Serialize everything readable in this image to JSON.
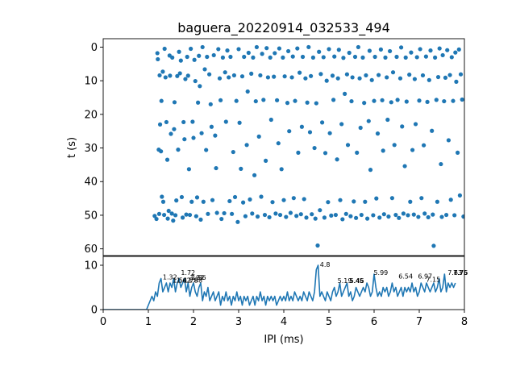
{
  "chart_data": [
    {
      "type": "scatter",
      "title": "baguera_20220914_032533_494",
      "ylabel": "t (s)",
      "xlim": [
        0,
        8
      ],
      "ylim": [
        62,
        -2.5
      ],
      "y_inverted": true,
      "yticks": [
        0,
        10,
        20,
        30,
        40,
        50,
        60
      ],
      "marker_color": "#1f77b4",
      "points": [
        [
          1.14,
          50.2
        ],
        [
          1.18,
          51.1
        ],
        [
          1.2,
          1.8
        ],
        [
          1.21,
          3.6
        ],
        [
          1.23,
          30.5
        ],
        [
          1.24,
          49.6
        ],
        [
          1.25,
          8.4
        ],
        [
          1.26,
          23.0
        ],
        [
          1.28,
          31.0
        ],
        [
          1.29,
          16.0
        ],
        [
          1.3,
          44.5
        ],
        [
          1.32,
          7.3
        ],
        [
          1.33,
          46.0
        ],
        [
          1.35,
          49.9
        ],
        [
          1.36,
          0.5
        ],
        [
          1.38,
          9.0
        ],
        [
          1.4,
          22.3
        ],
        [
          1.42,
          33.5
        ],
        [
          1.43,
          51.0
        ],
        [
          1.45,
          48.7
        ],
        [
          1.47,
          2.5
        ],
        [
          1.48,
          8.5
        ],
        [
          1.5,
          25.8
        ],
        [
          1.52,
          49.5
        ],
        [
          1.53,
          3.1
        ],
        [
          1.55,
          51.6
        ],
        [
          1.57,
          24.4
        ],
        [
          1.58,
          16.4
        ],
        [
          1.6,
          50.0
        ],
        [
          1.62,
          45.6
        ],
        [
          1.64,
          8.6
        ],
        [
          1.66,
          30.5
        ],
        [
          1.68,
          1.4
        ],
        [
          1.7,
          7.8
        ],
        [
          1.72,
          4.0
        ],
        [
          1.74,
          44.6
        ],
        [
          1.76,
          50.7
        ],
        [
          1.78,
          22.3
        ],
        [
          1.8,
          27.4
        ],
        [
          1.82,
          9.5
        ],
        [
          1.84,
          49.8
        ],
        [
          1.86,
          2.9
        ],
        [
          1.88,
          8.5
        ],
        [
          1.9,
          36.3
        ],
        [
          1.92,
          49.9
        ],
        [
          1.94,
          0.5
        ],
        [
          1.96,
          46.0
        ],
        [
          1.98,
          22.2
        ],
        [
          2.0,
          27.0
        ],
        [
          2.02,
          3.8
        ],
        [
          2.04,
          10.1
        ],
        [
          2.06,
          50.3
        ],
        [
          2.08,
          44.7
        ],
        [
          2.1,
          16.5
        ],
        [
          2.12,
          2.6
        ],
        [
          2.14,
          11.6
        ],
        [
          2.16,
          51.3
        ],
        [
          2.18,
          25.6
        ],
        [
          2.2,
          0.0
        ],
        [
          2.22,
          46.0
        ],
        [
          2.25,
          6.6
        ],
        [
          2.28,
          30.6
        ],
        [
          2.3,
          2.9
        ],
        [
          2.32,
          49.6
        ],
        [
          2.35,
          8.1
        ],
        [
          2.38,
          17.0
        ],
        [
          2.4,
          23.7
        ],
        [
          2.42,
          45.5
        ],
        [
          2.45,
          2.4
        ],
        [
          2.48,
          26.3
        ],
        [
          2.5,
          36.0
        ],
        [
          2.52,
          49.3
        ],
        [
          2.55,
          0.6
        ],
        [
          2.58,
          9.3
        ],
        [
          2.6,
          15.8
        ],
        [
          2.62,
          51.1
        ],
        [
          2.65,
          3.1
        ],
        [
          2.68,
          49.4
        ],
        [
          2.7,
          7.5
        ],
        [
          2.72,
          22.2
        ],
        [
          2.75,
          1.0
        ],
        [
          2.78,
          9.0
        ],
        [
          2.8,
          45.8
        ],
        [
          2.82,
          2.9
        ],
        [
          2.85,
          49.6
        ],
        [
          2.88,
          31.2
        ],
        [
          2.9,
          8.4
        ],
        [
          2.92,
          44.6
        ],
        [
          2.95,
          16.0
        ],
        [
          2.98,
          52.0
        ],
        [
          3.0,
          0.6
        ],
        [
          3.02,
          22.5
        ],
        [
          3.05,
          36.2
        ],
        [
          3.08,
          8.7
        ],
        [
          3.1,
          46.2
        ],
        [
          3.12,
          2.9
        ],
        [
          3.15,
          50.3
        ],
        [
          3.18,
          29.1
        ],
        [
          3.2,
          13.2
        ],
        [
          3.22,
          1.7
        ],
        [
          3.25,
          45.3
        ],
        [
          3.28,
          7.9
        ],
        [
          3.3,
          49.5
        ],
        [
          3.32,
          3.1
        ],
        [
          3.35,
          38.1
        ],
        [
          3.38,
          16.1
        ],
        [
          3.4,
          0.0
        ],
        [
          3.42,
          50.4
        ],
        [
          3.45,
          26.6
        ],
        [
          3.48,
          8.4
        ],
        [
          3.5,
          44.5
        ],
        [
          3.52,
          2.0
        ],
        [
          3.55,
          15.7
        ],
        [
          3.58,
          49.9
        ],
        [
          3.6,
          33.8
        ],
        [
          3.62,
          0.3
        ],
        [
          3.65,
          9.0
        ],
        [
          3.68,
          50.6
        ],
        [
          3.7,
          3.1
        ],
        [
          3.72,
          21.6
        ],
        [
          3.75,
          46.1
        ],
        [
          3.78,
          8.8
        ],
        [
          3.8,
          1.8
        ],
        [
          3.82,
          49.5
        ],
        [
          3.85,
          15.8
        ],
        [
          3.88,
          28.6
        ],
        [
          3.9,
          0.4
        ],
        [
          3.92,
          49.9
        ],
        [
          3.95,
          36.3
        ],
        [
          3.98,
          3.1
        ],
        [
          4.0,
          45.5
        ],
        [
          4.02,
          8.7
        ],
        [
          4.05,
          50.5
        ],
        [
          4.08,
          16.6
        ],
        [
          4.1,
          1.2
        ],
        [
          4.12,
          25.0
        ],
        [
          4.15,
          49.3
        ],
        [
          4.18,
          9.0
        ],
        [
          4.2,
          2.8
        ],
        [
          4.22,
          44.9
        ],
        [
          4.25,
          16.0
        ],
        [
          4.28,
          50.2
        ],
        [
          4.3,
          0.4
        ],
        [
          4.32,
          31.4
        ],
        [
          4.35,
          7.6
        ],
        [
          4.38,
          49.7
        ],
        [
          4.4,
          23.7
        ],
        [
          4.42,
          2.9
        ],
        [
          4.45,
          45.2
        ],
        [
          4.48,
          9.3
        ],
        [
          4.5,
          50.7
        ],
        [
          4.52,
          16.5
        ],
        [
          4.55,
          0.0
        ],
        [
          4.58,
          25.3
        ],
        [
          4.6,
          8.6
        ],
        [
          4.62,
          49.7
        ],
        [
          4.65,
          3.1
        ],
        [
          4.68,
          30.0
        ],
        [
          4.7,
          51.0
        ],
        [
          4.72,
          16.7
        ],
        [
          4.75,
          59.0
        ],
        [
          4.78,
          1.4
        ],
        [
          4.8,
          48.5
        ],
        [
          4.82,
          8.0
        ],
        [
          4.85,
          22.4
        ],
        [
          4.88,
          3.0
        ],
        [
          4.9,
          50.7
        ],
        [
          4.92,
          31.5
        ],
        [
          4.95,
          10.0
        ],
        [
          4.98,
          46.1
        ],
        [
          5.0,
          0.6
        ],
        [
          5.02,
          25.6
        ],
        [
          5.05,
          50.1
        ],
        [
          5.08,
          8.5
        ],
        [
          5.1,
          15.7
        ],
        [
          5.12,
          2.8
        ],
        [
          5.15,
          49.9
        ],
        [
          5.18,
          33.4
        ],
        [
          5.2,
          9.3
        ],
        [
          5.22,
          0.8
        ],
        [
          5.25,
          45.5
        ],
        [
          5.28,
          22.9
        ],
        [
          5.3,
          51.2
        ],
        [
          5.32,
          3.2
        ],
        [
          5.35,
          13.9
        ],
        [
          5.38,
          49.6
        ],
        [
          5.4,
          8.1
        ],
        [
          5.42,
          29.1
        ],
        [
          5.45,
          1.7
        ],
        [
          5.48,
          50.3
        ],
        [
          5.5,
          16.1
        ],
        [
          5.52,
          9.0
        ],
        [
          5.55,
          45.9
        ],
        [
          5.58,
          2.9
        ],
        [
          5.6,
          50.8
        ],
        [
          5.62,
          31.4
        ],
        [
          5.65,
          0.0
        ],
        [
          5.68,
          9.3
        ],
        [
          5.7,
          24.0
        ],
        [
          5.72,
          49.9
        ],
        [
          5.75,
          3.1
        ],
        [
          5.78,
          16.6
        ],
        [
          5.8,
          46.0
        ],
        [
          5.82,
          8.4
        ],
        [
          5.85,
          51.0
        ],
        [
          5.88,
          22.0
        ],
        [
          5.9,
          1.1
        ],
        [
          5.92,
          36.5
        ],
        [
          5.95,
          9.8
        ],
        [
          5.98,
          50.0
        ],
        [
          6.0,
          16.0
        ],
        [
          6.02,
          2.9
        ],
        [
          6.05,
          45.0
        ],
        [
          6.08,
          25.7
        ],
        [
          6.1,
          8.3
        ],
        [
          6.12,
          50.7
        ],
        [
          6.15,
          0.7
        ],
        [
          6.18,
          15.8
        ],
        [
          6.2,
          30.8
        ],
        [
          6.22,
          49.7
        ],
        [
          6.25,
          3.1
        ],
        [
          6.28,
          9.0
        ],
        [
          6.3,
          21.6
        ],
        [
          6.32,
          50.4
        ],
        [
          6.35,
          1.2
        ],
        [
          6.38,
          16.4
        ],
        [
          6.4,
          44.9
        ],
        [
          6.42,
          7.5
        ],
        [
          6.45,
          29.1
        ],
        [
          6.48,
          49.9
        ],
        [
          6.5,
          2.9
        ],
        [
          6.52,
          15.7
        ],
        [
          6.55,
          50.8
        ],
        [
          6.58,
          9.3
        ],
        [
          6.6,
          0.1
        ],
        [
          6.62,
          23.6
        ],
        [
          6.65,
          49.5
        ],
        [
          6.68,
          35.4
        ],
        [
          6.7,
          3.1
        ],
        [
          6.72,
          16.2
        ],
        [
          6.75,
          50.0
        ],
        [
          6.78,
          8.2
        ],
        [
          6.8,
          46.0
        ],
        [
          6.82,
          1.6
        ],
        [
          6.85,
          30.6
        ],
        [
          6.88,
          49.8
        ],
        [
          6.9,
          9.5
        ],
        [
          6.92,
          22.9
        ],
        [
          6.95,
          3.0
        ],
        [
          6.98,
          50.5
        ],
        [
          7.0,
          15.9
        ],
        [
          7.02,
          0.6
        ],
        [
          7.05,
          44.9
        ],
        [
          7.08,
          8.4
        ],
        [
          7.1,
          29.2
        ],
        [
          7.12,
          49.5
        ],
        [
          7.15,
          2.8
        ],
        [
          7.18,
          16.3
        ],
        [
          7.2,
          50.6
        ],
        [
          7.22,
          9.8
        ],
        [
          7.25,
          1.0
        ],
        [
          7.28,
          24.9
        ],
        [
          7.3,
          49.8
        ],
        [
          7.32,
          59.1
        ],
        [
          7.35,
          3.1
        ],
        [
          7.38,
          15.7
        ],
        [
          7.4,
          46.0
        ],
        [
          7.42,
          8.9
        ],
        [
          7.45,
          0.4
        ],
        [
          7.48,
          34.8
        ],
        [
          7.5,
          50.5
        ],
        [
          7.52,
          2.4
        ],
        [
          7.55,
          16.1
        ],
        [
          7.58,
          9.1
        ],
        [
          7.6,
          49.9
        ],
        [
          7.62,
          0.9
        ],
        [
          7.65,
          27.7
        ],
        [
          7.68,
          8.3
        ],
        [
          7.7,
          45.4
        ],
        [
          7.72,
          3.0
        ],
        [
          7.75,
          16.0
        ],
        [
          7.78,
          50.0
        ],
        [
          7.8,
          1.6
        ],
        [
          7.82,
          10.3
        ],
        [
          7.85,
          31.4
        ],
        [
          7.88,
          0.7
        ],
        [
          7.9,
          44.1
        ],
        [
          7.92,
          8.1
        ],
        [
          7.95,
          15.6
        ],
        [
          7.98,
          50.4
        ]
      ]
    },
    {
      "type": "line",
      "xlabel": "IPI (ms)",
      "xlim": [
        0,
        8
      ],
      "ylim": [
        0,
        12
      ],
      "xticks": [
        0,
        1,
        2,
        3,
        4,
        5,
        6,
        7,
        8
      ],
      "yticks": [
        0,
        10
      ],
      "line_color": "#1f77b4",
      "x_start": 0,
      "x_step": 0.04,
      "values": [
        0,
        0,
        0,
        0,
        0,
        0,
        0,
        0,
        0,
        0,
        0,
        0,
        0,
        0,
        0,
        0,
        0,
        0,
        0,
        0,
        0,
        0,
        0,
        0,
        0,
        1,
        2,
        3,
        2,
        4,
        3,
        6,
        7,
        4,
        5,
        6,
        4,
        6,
        5,
        7,
        4,
        6,
        7,
        5,
        6,
        7,
        4,
        6,
        3,
        5,
        6,
        4,
        3,
        5,
        6,
        2,
        4,
        3,
        5,
        2,
        3,
        4,
        2,
        3,
        4,
        1,
        3,
        2,
        4,
        2,
        3,
        1,
        3,
        2,
        4,
        2,
        3,
        1,
        3,
        2,
        3,
        1,
        2,
        3,
        1,
        3,
        2,
        4,
        2,
        3,
        1,
        3,
        2,
        3,
        2,
        3,
        1,
        2,
        3,
        2,
        3,
        2,
        4,
        2,
        3,
        2,
        4,
        3,
        2,
        3,
        2,
        4,
        3,
        2,
        4,
        3,
        2,
        4,
        9,
        10,
        3,
        4,
        3,
        2,
        4,
        3,
        2,
        4,
        5,
        3,
        4,
        6,
        3,
        4,
        5,
        6,
        3,
        4,
        2,
        3,
        5,
        4,
        3,
        4,
        5,
        4,
        6,
        5,
        3,
        4,
        8,
        5,
        3,
        4,
        3,
        5,
        4,
        5,
        3,
        4,
        6,
        4,
        5,
        3,
        4,
        5,
        3,
        5,
        4,
        5,
        4,
        6,
        4,
        5,
        3,
        4,
        6,
        5,
        4,
        6,
        5,
        4,
        5,
        6,
        4,
        5,
        7,
        4,
        5,
        8,
        4,
        6,
        5,
        6,
        5,
        6
      ],
      "peak_labels": [
        {
          "x": 1.32,
          "y": 7.2,
          "text": "1.32"
        },
        {
          "x": 1.54,
          "y": 6.5,
          "text": "1.54"
        },
        {
          "x": 1.62,
          "y": 6.5,
          "text": "1.62"
        },
        {
          "x": 1.72,
          "y": 8.2,
          "text": "1.72"
        },
        {
          "x": 1.78,
          "y": 6.5,
          "text": "1.78"
        },
        {
          "x": 1.88,
          "y": 6.5,
          "text": "1.88"
        },
        {
          "x": 1.92,
          "y": 7.1,
          "text": "1.92"
        },
        {
          "x": 1.96,
          "y": 7.1,
          "text": "1.96"
        },
        {
          "x": 4.8,
          "y": 10.0,
          "text": "4.8"
        },
        {
          "x": 5.19,
          "y": 6.4,
          "text": "5.19"
        },
        {
          "x": 5.45,
          "y": 6.4,
          "text": "5.45"
        },
        {
          "x": 5.46,
          "y": 6.4,
          "text": "5.46"
        },
        {
          "x": 5.99,
          "y": 8.2,
          "text": "5.99"
        },
        {
          "x": 6.54,
          "y": 7.4,
          "text": "6.54"
        },
        {
          "x": 6.97,
          "y": 7.4,
          "text": "6.97"
        },
        {
          "x": 7.15,
          "y": 6.6,
          "text": "7.15"
        },
        {
          "x": 7.63,
          "y": 8.2,
          "text": "7.63"
        },
        {
          "x": 7.75,
          "y": 8.2,
          "text": "7.75"
        },
        {
          "x": 7.76,
          "y": 8.2,
          "text": "7.76"
        }
      ]
    }
  ]
}
